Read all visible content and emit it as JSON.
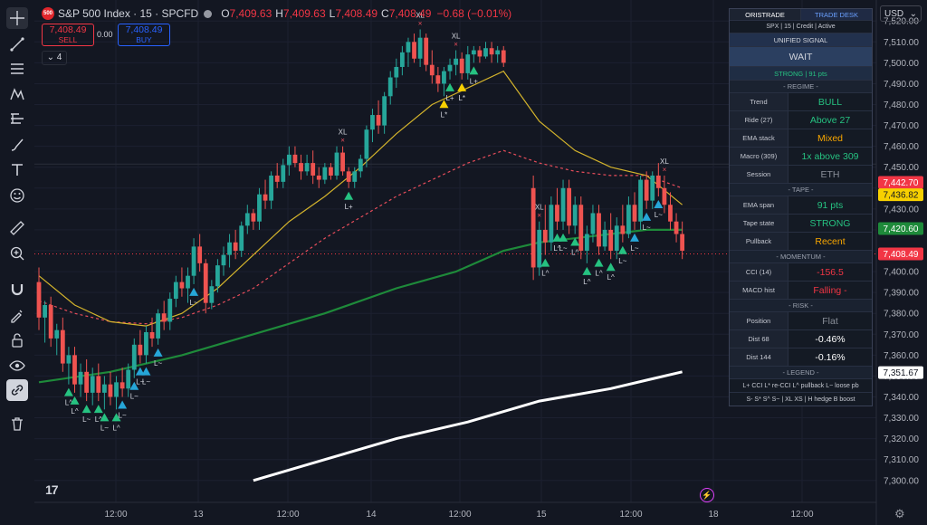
{
  "header": {
    "logo_text": "500",
    "symbol": "S&P 500 Index · 15 · SPCFD",
    "open_label": "O",
    "open": "7,409.63",
    "high_label": "H",
    "high": "7,409.63",
    "low_label": "L",
    "low": "7,408.49",
    "close_label": "C",
    "close": "7,408.49",
    "change": "−0.68 (−0.01%)"
  },
  "trade": {
    "sell_price": "7,408.49",
    "sell_label": "SELL",
    "spread": "0.00",
    "buy_price": "7,408.49",
    "buy_label": "BUY"
  },
  "indicators_count": "4",
  "currency": "USD",
  "toolbar": [
    "crosshair-icon",
    "trend-line-icon",
    "fib-icon",
    "pattern-icon",
    "measure-lines-icon",
    "brush-icon",
    "text-icon",
    "emoji-icon",
    "ruler-icon",
    "zoom-icon",
    "magnet-icon",
    "lock-draw-icon",
    "lock-icon",
    "eye-icon",
    "link-icon",
    "trash-icon"
  ],
  "panel": {
    "tab_left": "ORISTRADE",
    "tab_right": "TRADE DESK",
    "subtitle": "SPX | 15 | Credit | Active",
    "signal_title": "UNIFIED SIGNAL",
    "signal": "WAIT",
    "strength": "STRONG | 91 pts",
    "sections": [
      {
        "title": "- REGIME -",
        "rows": [
          {
            "label": "Trend",
            "value": "BULL",
            "color": "#26c281"
          },
          {
            "label": "Ride (27)",
            "value": "Above 27",
            "color": "#26c281"
          },
          {
            "label": "EMA stack",
            "value": "Mixed",
            "color": "#f7a600"
          },
          {
            "label": "Macro (309)",
            "value": "1x above 309",
            "color": "#26c281"
          },
          {
            "label": "Session",
            "value": "ETH",
            "color": "#8a8f99"
          }
        ]
      },
      {
        "title": "- TAPE -",
        "rows": [
          {
            "label": "EMA span",
            "value": "91 pts",
            "color": "#26c281"
          },
          {
            "label": "Tape state",
            "value": "STRONG",
            "color": "#26c281"
          },
          {
            "label": "Pullback",
            "value": "Recent",
            "color": "#f7a600"
          }
        ]
      },
      {
        "title": "- MOMENTUM -",
        "rows": [
          {
            "label": "CCI (14)",
            "value": "-156.5",
            "color": "#f23645"
          },
          {
            "label": "MACD hist",
            "value": "Falling -",
            "color": "#f23645"
          }
        ]
      },
      {
        "title": "- RISK -",
        "rows": [
          {
            "label": "Position",
            "value": "Flat",
            "color": "#8a8f99"
          },
          {
            "label": "Dist 68",
            "value": "-0.46%",
            "color": "#ffffff"
          },
          {
            "label": "Dist 144",
            "value": "-0.16%",
            "color": "#ffffff"
          }
        ]
      }
    ],
    "legend_title": "- LEGEND -",
    "legend_line1": "L+ CCI  L* re-CCI  L^ pullback  L~ loose pb",
    "legend_line2": "S- S* S^ S~  |  XL XS  |  H hedge  B boost"
  },
  "chart_data": {
    "type": "candlestick",
    "y_ticks": [
      "7,520.00",
      "7,510.00",
      "7,500.00",
      "7,490.00",
      "7,480.00",
      "7,470.00",
      "7,460.00",
      "7,450.00",
      "7,440.00",
      "7,430.00",
      "7,420.00",
      "7,410.00",
      "7,400.00",
      "7,390.00",
      "7,380.00",
      "7,370.00",
      "7,360.00",
      "7,350.00",
      "7,340.00",
      "7,330.00",
      "7,320.00",
      "7,310.00",
      "7,300.00"
    ],
    "ylim": [
      7296,
      7524
    ],
    "x_ticks": [
      "12:00",
      "13",
      "12:00",
      "14",
      "12:00",
      "15",
      "12:00",
      "18",
      "12:00"
    ],
    "price_tags": [
      {
        "value": 7442.7,
        "label": "7,442.70",
        "bg": "#f23645",
        "fg": "#ffffff"
      },
      {
        "value": 7436.82,
        "label": "7,436.82",
        "bg": "#f7d000",
        "fg": "#131722"
      },
      {
        "value": 7420.6,
        "label": "7,420.60",
        "bg": "#1e8a3a",
        "fg": "#ffffff"
      },
      {
        "value": 7408.49,
        "label": "7,408.49",
        "bg": "#f23645",
        "fg": "#ffffff"
      },
      {
        "value": 7351.67,
        "label": "7,351.67",
        "bg": "#ffffff",
        "fg": "#131722"
      }
    ],
    "candles": [
      [
        0,
        7395,
        7402,
        7372,
        7378
      ],
      [
        1,
        7378,
        7386,
        7366,
        7384
      ],
      [
        2,
        7384,
        7388,
        7364,
        7368
      ],
      [
        3,
        7368,
        7375,
        7360,
        7372
      ],
      [
        4,
        7372,
        7378,
        7352,
        7356
      ],
      [
        5,
        7356,
        7364,
        7346,
        7360
      ],
      [
        6,
        7360,
        7364,
        7342,
        7346
      ],
      [
        7,
        7346,
        7356,
        7340,
        7352
      ],
      [
        8,
        7352,
        7358,
        7338,
        7342
      ],
      [
        9,
        7342,
        7354,
        7336,
        7350
      ],
      [
        10,
        7350,
        7356,
        7338,
        7342
      ],
      [
        11,
        7342,
        7350,
        7334,
        7346
      ],
      [
        12,
        7346,
        7352,
        7336,
        7340
      ],
      [
        13,
        7340,
        7350,
        7334,
        7347
      ],
      [
        14,
        7347,
        7354,
        7340,
        7344
      ],
      [
        15,
        7344,
        7356,
        7340,
        7353
      ],
      [
        16,
        7353,
        7368,
        7349,
        7365
      ],
      [
        17,
        7365,
        7372,
        7356,
        7360
      ],
      [
        18,
        7360,
        7374,
        7356,
        7371
      ],
      [
        19,
        7371,
        7378,
        7364,
        7368
      ],
      [
        20,
        7368,
        7382,
        7365,
        7380
      ],
      [
        21,
        7380,
        7386,
        7372,
        7376
      ],
      [
        22,
        7376,
        7390,
        7372,
        7387
      ],
      [
        23,
        7387,
        7398,
        7383,
        7395
      ],
      [
        24,
        7395,
        7402,
        7388,
        7392
      ],
      [
        25,
        7392,
        7402,
        7385,
        7398
      ],
      [
        26,
        7398,
        7416,
        7394,
        7412
      ],
      [
        27,
        7412,
        7418,
        7400,
        7404
      ],
      [
        28,
        7404,
        7406,
        7380,
        7385
      ],
      [
        29,
        7385,
        7396,
        7382,
        7393
      ],
      [
        30,
        7393,
        7406,
        7390,
        7403
      ],
      [
        31,
        7403,
        7412,
        7398,
        7408
      ],
      [
        32,
        7408,
        7418,
        7402,
        7414
      ],
      [
        33,
        7414,
        7420,
        7406,
        7410
      ],
      [
        34,
        7410,
        7424,
        7407,
        7422
      ],
      [
        35,
        7422,
        7432,
        7418,
        7428
      ],
      [
        36,
        7428,
        7430,
        7420,
        7424
      ],
      [
        37,
        7424,
        7440,
        7420,
        7437
      ],
      [
        38,
        7437,
        7444,
        7430,
        7434
      ],
      [
        39,
        7434,
        7448,
        7430,
        7446
      ],
      [
        40,
        7446,
        7452,
        7440,
        7443
      ],
      [
        41,
        7443,
        7454,
        7440,
        7451
      ],
      [
        42,
        7451,
        7460,
        7446,
        7456
      ],
      [
        43,
        7456,
        7460,
        7450,
        7452
      ],
      [
        44,
        7452,
        7456,
        7444,
        7448
      ],
      [
        45,
        7448,
        7456,
        7446,
        7452
      ],
      [
        46,
        7452,
        7458,
        7442,
        7446
      ],
      [
        47,
        7446,
        7450,
        7440,
        7444
      ],
      [
        48,
        7444,
        7452,
        7442,
        7450
      ],
      [
        49,
        7450,
        7452,
        7444,
        7446
      ],
      [
        50,
        7446,
        7460,
        7444,
        7457
      ],
      [
        51,
        7457,
        7460,
        7446,
        7448
      ],
      [
        52,
        7448,
        7450,
        7440,
        7443
      ],
      [
        53,
        7443,
        7450,
        7440,
        7448
      ],
      [
        54,
        7448,
        7456,
        7445,
        7454
      ],
      [
        55,
        7454,
        7470,
        7450,
        7468
      ],
      [
        56,
        7468,
        7478,
        7462,
        7475
      ],
      [
        57,
        7475,
        7482,
        7466,
        7470
      ],
      [
        58,
        7470,
        7486,
        7466,
        7484
      ],
      [
        59,
        7484,
        7496,
        7480,
        7493
      ],
      [
        60,
        7493,
        7502,
        7488,
        7498
      ],
      [
        61,
        7498,
        7508,
        7494,
        7505
      ],
      [
        62,
        7505,
        7512,
        7498,
        7510
      ],
      [
        63,
        7510,
        7514,
        7500,
        7502
      ],
      [
        64,
        7502,
        7516,
        7498,
        7512
      ],
      [
        65,
        7512,
        7514,
        7496,
        7499
      ],
      [
        66,
        7499,
        7506,
        7490,
        7494
      ],
      [
        67,
        7494,
        7498,
        7486,
        7490
      ],
      [
        68,
        7490,
        7498,
        7484,
        7496
      ],
      [
        69,
        7496,
        7502,
        7492,
        7499
      ],
      [
        70,
        7499,
        7506,
        7494,
        7502
      ],
      [
        71,
        7502,
        7505,
        7492,
        7495
      ],
      [
        72,
        7495,
        7508,
        7492,
        7504
      ],
      [
        73,
        7504,
        7508,
        7500,
        7506
      ],
      [
        74,
        7506,
        7508,
        7500,
        7503
      ],
      [
        75,
        7503,
        7510,
        7502,
        7507
      ],
      [
        76,
        7507,
        7510,
        7500,
        7504
      ],
      [
        77,
        7504,
        7508,
        7500,
        7506
      ],
      [
        78,
        7506,
        7508,
        7498,
        7500
      ],
      [
        83,
        7440,
        7446,
        7396,
        7402
      ],
      [
        84,
        7402,
        7424,
        7398,
        7420
      ],
      [
        85,
        7420,
        7432,
        7408,
        7414
      ],
      [
        86,
        7414,
        7436,
        7410,
        7432
      ],
      [
        87,
        7432,
        7440,
        7420,
        7424
      ],
      [
        88,
        7424,
        7444,
        7420,
        7440
      ],
      [
        89,
        7440,
        7444,
        7418,
        7422
      ],
      [
        90,
        7422,
        7436,
        7418,
        7432
      ],
      [
        91,
        7432,
        7436,
        7406,
        7410
      ],
      [
        92,
        7410,
        7422,
        7404,
        7418
      ],
      [
        93,
        7418,
        7432,
        7414,
        7428
      ],
      [
        94,
        7428,
        7432,
        7408,
        7412
      ],
      [
        95,
        7412,
        7424,
        7410,
        7420
      ],
      [
        96,
        7420,
        7428,
        7406,
        7410
      ],
      [
        97,
        7410,
        7426,
        7406,
        7422
      ],
      [
        98,
        7422,
        7432,
        7414,
        7418
      ],
      [
        99,
        7418,
        7436,
        7416,
        7432
      ],
      [
        100,
        7432,
        7438,
        7420,
        7424
      ],
      [
        101,
        7424,
        7446,
        7420,
        7444
      ],
      [
        102,
        7444,
        7448,
        7430,
        7434
      ],
      [
        103,
        7434,
        7448,
        7430,
        7446
      ],
      [
        104,
        7446,
        7452,
        7436,
        7440
      ],
      [
        105,
        7440,
        7446,
        7428,
        7432
      ],
      [
        106,
        7432,
        7438,
        7420,
        7424
      ],
      [
        107,
        7424,
        7428,
        7414,
        7418
      ],
      [
        108,
        7418,
        7424,
        7406,
        7410
      ]
    ],
    "ema_yellow": [
      [
        0,
        7398
      ],
      [
        6,
        7384
      ],
      [
        12,
        7376
      ],
      [
        18,
        7374
      ],
      [
        24,
        7380
      ],
      [
        30,
        7392
      ],
      [
        36,
        7408
      ],
      [
        42,
        7424
      ],
      [
        48,
        7436
      ],
      [
        54,
        7450
      ],
      [
        60,
        7466
      ],
      [
        66,
        7480
      ],
      [
        72,
        7488
      ],
      [
        78,
        7496
      ],
      [
        84,
        7472
      ],
      [
        90,
        7458
      ],
      [
        96,
        7450
      ],
      [
        102,
        7446
      ],
      [
        108,
        7432
      ]
    ],
    "ema_red_dotted": [
      [
        0,
        7386
      ],
      [
        6,
        7380
      ],
      [
        12,
        7376
      ],
      [
        18,
        7375
      ],
      [
        24,
        7378
      ],
      [
        30,
        7384
      ],
      [
        36,
        7392
      ],
      [
        42,
        7404
      ],
      [
        48,
        7416
      ],
      [
        54,
        7426
      ],
      [
        60,
        7436
      ],
      [
        66,
        7444
      ],
      [
        72,
        7452
      ],
      [
        78,
        7458
      ],
      [
        84,
        7452
      ],
      [
        90,
        7448
      ],
      [
        96,
        7446
      ],
      [
        102,
        7446
      ],
      [
        108,
        7440
      ]
    ],
    "ema_green": [
      [
        0,
        7347
      ],
      [
        12,
        7352
      ],
      [
        24,
        7360
      ],
      [
        36,
        7370
      ],
      [
        48,
        7380
      ],
      [
        60,
        7392
      ],
      [
        70,
        7400
      ],
      [
        78,
        7410
      ],
      [
        84,
        7414
      ],
      [
        96,
        7418
      ],
      [
        102,
        7420
      ],
      [
        108,
        7420
      ]
    ],
    "ema_white": [
      [
        36,
        7300
      ],
      [
        48,
        7310
      ],
      [
        60,
        7320
      ],
      [
        72,
        7328
      ],
      [
        84,
        7338
      ],
      [
        96,
        7344
      ],
      [
        102,
        7348
      ],
      [
        108,
        7352
      ]
    ],
    "markers": [
      {
        "i": 5,
        "text": "L^",
        "color": "#26c281"
      },
      {
        "i": 6,
        "text": "L^",
        "color": "#26c281"
      },
      {
        "i": 8,
        "text": "L~",
        "color": "#26c281"
      },
      {
        "i": 10,
        "text": "L^",
        "color": "#26c281"
      },
      {
        "i": 11,
        "text": "L~",
        "color": "#26c281"
      },
      {
        "i": 13,
        "text": "L^",
        "color": "#26c281"
      },
      {
        "i": 14,
        "text": "L~",
        "color": "#26a6d8"
      },
      {
        "i": 16,
        "text": "L~",
        "color": "#26a6d8"
      },
      {
        "i": 17,
        "text": "L~",
        "color": "#26a6d8"
      },
      {
        "i": 18,
        "text": "L~",
        "color": "#26a6d8"
      },
      {
        "i": 20,
        "text": "L~",
        "color": "#26a6d8"
      },
      {
        "i": 26,
        "text": "L~",
        "color": "#26a6d8"
      },
      {
        "i": 52,
        "text": "L+",
        "color": "#26c281"
      },
      {
        "i": 68,
        "text": "L*",
        "color": "#f7d000"
      },
      {
        "i": 69,
        "text": "L+",
        "color": "#26c281"
      },
      {
        "i": 71,
        "text": "L*",
        "color": "#f7d000"
      },
      {
        "i": 73,
        "text": "L+",
        "color": "#26c281"
      },
      {
        "i": 85,
        "text": "L^",
        "color": "#26c281"
      },
      {
        "i": 87,
        "text": "L^",
        "color": "#26c281"
      },
      {
        "i": 88,
        "text": "L~",
        "color": "#26c281"
      },
      {
        "i": 90,
        "text": "L^",
        "color": "#26c281"
      },
      {
        "i": 92,
        "text": "L^",
        "color": "#26c281"
      },
      {
        "i": 94,
        "text": "L^",
        "color": "#26c281"
      },
      {
        "i": 96,
        "text": "L^",
        "color": "#26c281"
      },
      {
        "i": 98,
        "text": "L~",
        "color": "#26c281"
      },
      {
        "i": 100,
        "text": "L~",
        "color": "#26a6d8"
      },
      {
        "i": 102,
        "text": "L~",
        "color": "#26a6d8"
      },
      {
        "i": 104,
        "text": "L~",
        "color": "#26a6d8"
      }
    ],
    "xl_marks": [
      {
        "i": 51,
        "text": "XL"
      },
      {
        "i": 64,
        "text": "XL"
      },
      {
        "i": 70,
        "text": "XL"
      },
      {
        "i": 84,
        "text": "XL"
      },
      {
        "i": 105,
        "text": "XL"
      }
    ]
  }
}
